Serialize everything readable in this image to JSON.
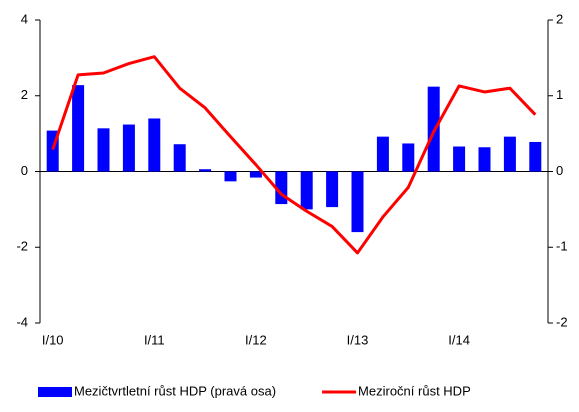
{
  "chart_data": {
    "type": "bar",
    "categories": [
      "I/10",
      null,
      null,
      null,
      "I/11",
      null,
      null,
      null,
      "I/12",
      null,
      null,
      null,
      "I/13",
      null,
      null,
      null,
      "I/14",
      null,
      null,
      null
    ],
    "series": [
      {
        "name": "Mezičtvrtletní růst HDP (pravá osa)",
        "type": "bar",
        "axis": "y2",
        "color": "#0000ff",
        "values": [
          0.54,
          1.14,
          0.57,
          0.62,
          0.7,
          0.36,
          0.03,
          -0.13,
          -0.08,
          -0.43,
          -0.5,
          -0.47,
          -0.8,
          0.46,
          0.37,
          1.12,
          0.33,
          0.32,
          0.46,
          0.39
        ]
      },
      {
        "name": "Meziroční růst HDP",
        "type": "line",
        "axis": "y",
        "color": "#ff0000",
        "values": [
          0.58,
          2.55,
          2.6,
          2.85,
          3.03,
          2.2,
          1.68,
          0.92,
          0.18,
          -0.6,
          -1.05,
          -1.45,
          -2.15,
          -1.2,
          -0.42,
          1.05,
          2.26,
          2.1,
          2.2,
          1.5
        ]
      }
    ],
    "ylim": [
      -4,
      4
    ],
    "yticks": [
      -4,
      -2,
      0,
      2,
      4
    ],
    "y2lim": [
      -2,
      2
    ],
    "y2ticks": [
      -2,
      -1,
      0,
      1,
      2
    ],
    "legend": "bottom"
  }
}
